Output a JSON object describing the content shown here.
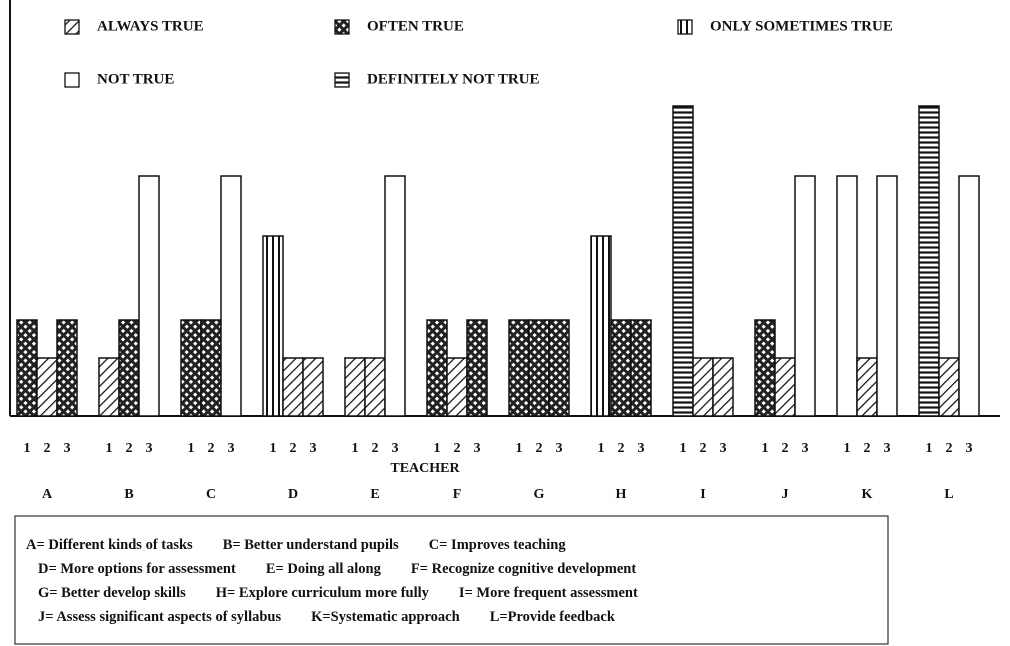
{
  "chart_data": {
    "type": "bar",
    "series": [
      {
        "name": "ALWAYS TRUE",
        "pattern": "diagonal"
      },
      {
        "name": "OFTEN TRUE",
        "pattern": "crosshatch"
      },
      {
        "name": "ONLY SOMETIMES TRUE",
        "pattern": "vertical"
      },
      {
        "name": "NOT TRUE",
        "pattern": "plain"
      },
      {
        "name": "DEFINITELY NOT TRUE",
        "pattern": "horizontal"
      }
    ],
    "teachers": [
      "1",
      "2",
      "3"
    ],
    "x_label": "TEACHER",
    "groups": [
      {
        "label": "A",
        "responses": [
          1,
          0,
          1
        ]
      },
      {
        "label": "B",
        "responses": [
          0,
          1,
          3
        ]
      },
      {
        "label": "C",
        "responses": [
          1,
          1,
          3
        ]
      },
      {
        "label": "D",
        "responses": [
          2,
          0,
          0
        ]
      },
      {
        "label": "E",
        "responses": [
          0,
          0,
          3
        ]
      },
      {
        "label": "F",
        "responses": [
          1,
          0,
          1
        ]
      },
      {
        "label": "G",
        "responses": [
          1,
          1,
          1
        ]
      },
      {
        "label": "H",
        "responses": [
          2,
          1,
          1
        ]
      },
      {
        "label": "I",
        "responses": [
          4,
          0,
          0
        ]
      },
      {
        "label": "J",
        "responses": [
          1,
          0,
          3
        ]
      },
      {
        "label": "K",
        "responses": [
          3,
          0,
          3
        ]
      },
      {
        "label": "L",
        "responses": [
          4,
          0,
          3
        ]
      }
    ],
    "key": [
      [
        "A= Different kinds of tasks",
        "B= Better understand pupils",
        "C= Improves teaching"
      ],
      [
        "D= More options for assessment",
        "E= Doing all along",
        "F= Recognize cognitive development"
      ],
      [
        "G= Better develop skills",
        "H= Explore curriculum more fully",
        "I= More frequent assessment"
      ],
      [
        "J= Assess significant aspects of syllabus",
        "K=Systematic approach",
        "L=Provide feedback"
      ]
    ]
  }
}
